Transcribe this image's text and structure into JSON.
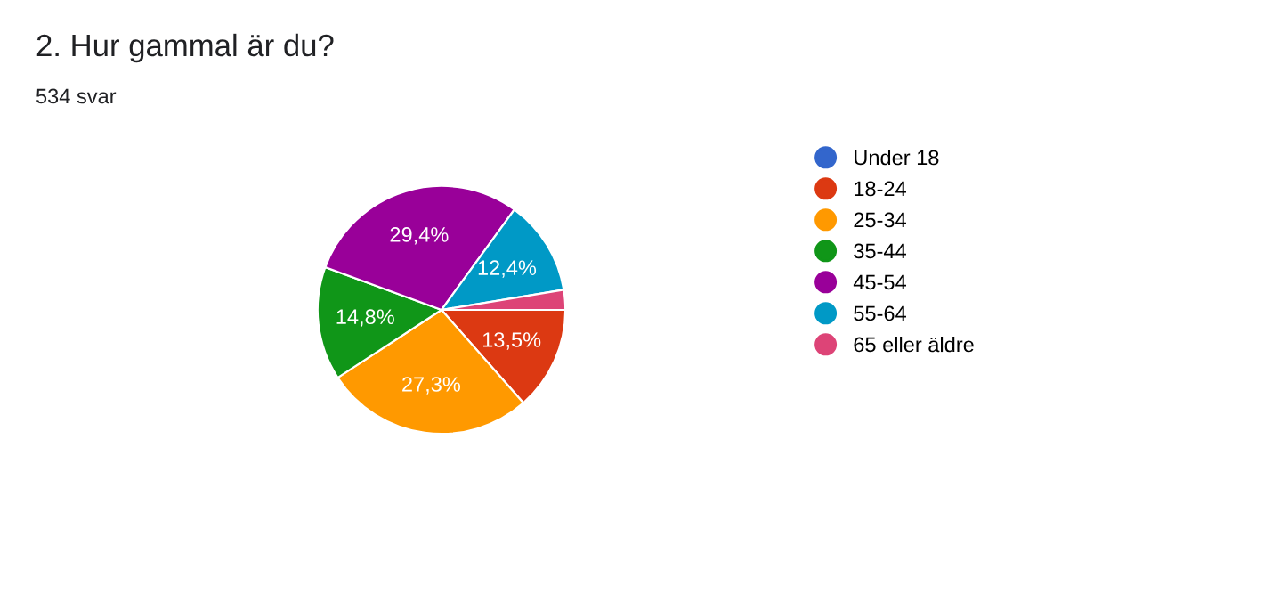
{
  "chart_data": {
    "type": "pie",
    "title": "2. Hur gammal är du?",
    "subtitle": "534 svar",
    "categories": [
      "Under 18",
      "18-24",
      "25-34",
      "35-44",
      "45-54",
      "55-64",
      "65 eller äldre"
    ],
    "values": [
      0,
      13.5,
      27.3,
      14.8,
      29.4,
      12.4,
      2.6
    ],
    "colors": [
      "#3366cc",
      "#dc3912",
      "#ff9900",
      "#109618",
      "#990099",
      "#0099c6",
      "#dd4477"
    ],
    "value_labels": [
      null,
      "13,5%",
      "27,3%",
      "14,8%",
      "29,4%",
      "12,4%",
      null
    ],
    "legend": "right"
  }
}
